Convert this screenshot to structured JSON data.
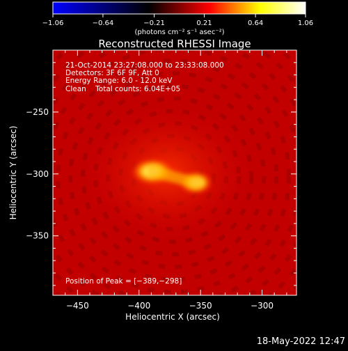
{
  "colorbar": {
    "ticks": [
      "-1.06",
      "-0.64",
      "-0.21",
      "0.21",
      "0.64",
      "1.06"
    ],
    "tick_values": [
      -1.06,
      -0.64,
      -0.21,
      0.21,
      0.64,
      1.06
    ],
    "range": [
      -1.06,
      1.06
    ],
    "unit_label": "(photons cm⁻² s⁻¹ asec⁻²)",
    "stops": [
      "#0000ff",
      "#000000",
      "#ff0000",
      "#ffff00",
      "#ffffff"
    ]
  },
  "chart_data": {
    "type": "heatmap",
    "title": "Reconstructed RHESSI Image",
    "xlabel": "Heliocentric X (arcsec)",
    "ylabel": "Heliocentric Y (arcsec)",
    "xlim": [
      -470,
      -272
    ],
    "ylim": [
      -398,
      -200
    ],
    "x_ticks": [
      -450,
      -400,
      -350,
      -300
    ],
    "y_ticks": [
      -250,
      -300,
      -350
    ],
    "x_tick_labels": [
      "−450",
      "−400",
      "−350",
      "−300"
    ],
    "y_tick_labels": [
      "−250",
      "−300",
      "−350"
    ],
    "sources": [
      {
        "x": -389,
        "y": -298,
        "peak": 1.0
      },
      {
        "x": -354,
        "y": -307,
        "peak": 0.85
      }
    ],
    "annotations": [
      "21-Oct-2014 23:27:08.000 to 23:33:08.000",
      "Detectors: 3F 6F 9F, Att 0",
      "Energy Range: 6.0 - 12.0 keV",
      "Clean    Total counts: 6.04E+05"
    ],
    "peak_text": "Position of Peak = [−389,−298]",
    "background_color": "#c30000"
  },
  "footer": {
    "timestamp": "18-May-2022 12:47"
  }
}
